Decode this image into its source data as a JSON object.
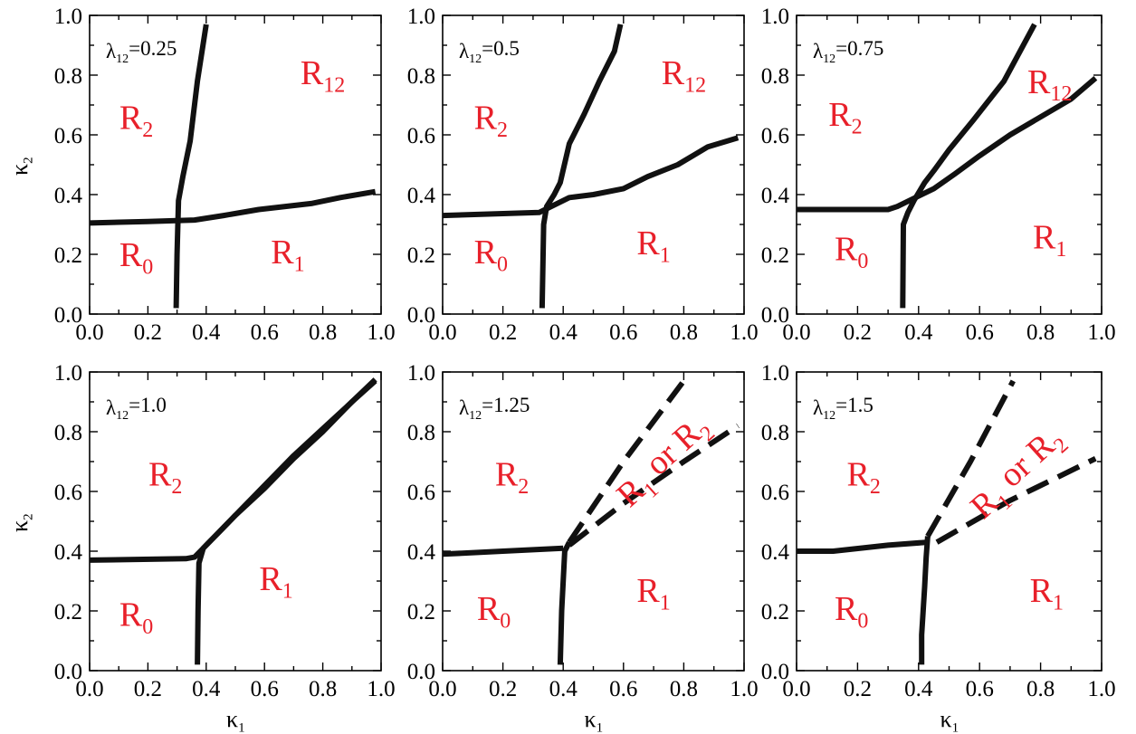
{
  "chart_data": [
    {
      "type": "line",
      "panel_label": {
        "base": "λ",
        "sub": "12",
        "value": "=0.25"
      },
      "xlabel": {
        "base": "κ",
        "sub": "1"
      },
      "ylabel": {
        "base": "κ",
        "sub": "2"
      },
      "xlim": [
        0,
        1
      ],
      "ylim": [
        0,
        1
      ],
      "xticks": [
        "0.0",
        "0.2",
        "0.4",
        "0.6",
        "0.8",
        "1.0"
      ],
      "yticks": [
        "0.0",
        "0.2",
        "0.4",
        "0.6",
        "0.8",
        "1.0"
      ],
      "regions": [
        {
          "base": "R",
          "sub": "2",
          "x": 0.16,
          "y": 0.62
        },
        {
          "base": "R",
          "sub": "12",
          "x": 0.8,
          "y": 0.77
        },
        {
          "base": "R",
          "sub": "0",
          "x": 0.16,
          "y": 0.16
        },
        {
          "base": "R",
          "sub": "1",
          "x": 0.68,
          "y": 0.17
        }
      ],
      "series": [
        {
          "dashed": false,
          "points": [
            [
              0.0,
              0.305
            ],
            [
              0.2,
              0.31
            ],
            [
              0.36,
              0.315
            ],
            [
              0.46,
              0.33
            ],
            [
              0.58,
              0.35
            ],
            [
              0.76,
              0.37
            ],
            [
              0.86,
              0.39
            ],
            [
              0.98,
              0.41
            ]
          ]
        },
        {
          "dashed": false,
          "points": [
            [
              0.297,
              0.02
            ],
            [
              0.3,
              0.2
            ],
            [
              0.305,
              0.38
            ],
            [
              0.32,
              0.46
            ],
            [
              0.345,
              0.58
            ],
            [
              0.37,
              0.78
            ],
            [
              0.4,
              0.97
            ]
          ]
        }
      ]
    },
    {
      "type": "line",
      "panel_label": {
        "base": "λ",
        "sub": "12",
        "value": "=0.5"
      },
      "xlabel": {
        "base": "κ",
        "sub": "1"
      },
      "ylabel": {
        "base": "κ",
        "sub": "2"
      },
      "xlim": [
        0,
        1
      ],
      "ylim": [
        0,
        1
      ],
      "xticks": [
        "0.0",
        "0.2",
        "0.4",
        "0.6",
        "0.8",
        "1.0"
      ],
      "yticks": [
        "0.0",
        "0.2",
        "0.4",
        "0.6",
        "0.8",
        "1.0"
      ],
      "regions": [
        {
          "base": "R",
          "sub": "2",
          "x": 0.16,
          "y": 0.62
        },
        {
          "base": "R",
          "sub": "12",
          "x": 0.8,
          "y": 0.77
        },
        {
          "base": "R",
          "sub": "0",
          "x": 0.16,
          "y": 0.17
        },
        {
          "base": "R",
          "sub": "1",
          "x": 0.7,
          "y": 0.2
        }
      ],
      "series": [
        {
          "dashed": false,
          "points": [
            [
              0.0,
              0.33
            ],
            [
              0.32,
              0.34
            ],
            [
              0.36,
              0.36
            ],
            [
              0.42,
              0.39
            ],
            [
              0.5,
              0.4
            ],
            [
              0.6,
              0.42
            ],
            [
              0.68,
              0.46
            ],
            [
              0.78,
              0.5
            ],
            [
              0.88,
              0.56
            ],
            [
              0.98,
              0.59
            ]
          ]
        },
        {
          "dashed": false,
          "points": [
            [
              0.33,
              0.02
            ],
            [
              0.335,
              0.3
            ],
            [
              0.345,
              0.36
            ],
            [
              0.37,
              0.4
            ],
            [
              0.39,
              0.44
            ],
            [
              0.42,
              0.57
            ],
            [
              0.47,
              0.67
            ],
            [
              0.52,
              0.78
            ],
            [
              0.57,
              0.88
            ],
            [
              0.59,
              0.97
            ]
          ]
        }
      ]
    },
    {
      "type": "line",
      "panel_label": {
        "base": "λ",
        "sub": "12",
        "value": "=0.75"
      },
      "xlabel": {
        "base": "κ",
        "sub": "1"
      },
      "ylabel": {
        "base": "κ",
        "sub": "2"
      },
      "xlim": [
        0,
        1
      ],
      "ylim": [
        0,
        1
      ],
      "xticks": [
        "0.0",
        "0.2",
        "0.4",
        "0.6",
        "0.8",
        "1.0"
      ],
      "yticks": [
        "0.0",
        "0.2",
        "0.4",
        "0.6",
        "0.8",
        "1.0"
      ],
      "regions": [
        {
          "base": "R",
          "sub": "2",
          "x": 0.16,
          "y": 0.63
        },
        {
          "base": "R",
          "sub": "12",
          "x": 0.83,
          "y": 0.74
        },
        {
          "base": "R",
          "sub": "0",
          "x": 0.18,
          "y": 0.18
        },
        {
          "base": "R",
          "sub": "1",
          "x": 0.83,
          "y": 0.22
        }
      ],
      "series": [
        {
          "dashed": false,
          "points": [
            [
              0.0,
              0.35
            ],
            [
              0.3,
              0.35
            ],
            [
              0.33,
              0.36
            ],
            [
              0.37,
              0.38
            ],
            [
              0.45,
              0.42
            ],
            [
              0.52,
              0.47
            ],
            [
              0.6,
              0.53
            ],
            [
              0.7,
              0.6
            ],
            [
              0.8,
              0.66
            ],
            [
              0.9,
              0.72
            ],
            [
              0.98,
              0.79
            ]
          ]
        },
        {
          "dashed": false,
          "points": [
            [
              0.348,
              0.02
            ],
            [
              0.35,
              0.3
            ],
            [
              0.365,
              0.34
            ],
            [
              0.385,
              0.38
            ],
            [
              0.42,
              0.44
            ],
            [
              0.45,
              0.48
            ],
            [
              0.5,
              0.55
            ],
            [
              0.58,
              0.65
            ],
            [
              0.68,
              0.78
            ],
            [
              0.78,
              0.97
            ]
          ]
        }
      ]
    },
    {
      "type": "line",
      "panel_label": {
        "base": "λ",
        "sub": "12",
        "value": "=1.0"
      },
      "xlabel": {
        "base": "κ",
        "sub": "1"
      },
      "ylabel": {
        "base": "κ",
        "sub": "2"
      },
      "xlim": [
        0,
        1
      ],
      "ylim": [
        0,
        1
      ],
      "xticks": [
        "0.0",
        "0.2",
        "0.4",
        "0.6",
        "0.8",
        "1.0"
      ],
      "yticks": [
        "0.0",
        "0.2",
        "0.4",
        "0.6",
        "0.8",
        "1.0"
      ],
      "regions": [
        {
          "base": "R",
          "sub": "2",
          "x": 0.26,
          "y": 0.62
        },
        {
          "base": "R",
          "sub": "0",
          "x": 0.16,
          "y": 0.15
        },
        {
          "base": "R",
          "sub": "1",
          "x": 0.64,
          "y": 0.27
        }
      ],
      "series": [
        {
          "dashed": false,
          "points": [
            [
              0.0,
              0.37
            ],
            [
              0.33,
              0.375
            ],
            [
              0.36,
              0.38
            ],
            [
              0.39,
              0.41
            ],
            [
              0.5,
              0.52
            ],
            [
              0.6,
              0.61
            ],
            [
              0.7,
              0.71
            ],
            [
              0.8,
              0.8
            ],
            [
              0.9,
              0.9
            ],
            [
              0.98,
              0.97
            ]
          ]
        },
        {
          "dashed": false,
          "points": [
            [
              0.37,
              0.02
            ],
            [
              0.372,
              0.2
            ],
            [
              0.375,
              0.36
            ],
            [
              0.39,
              0.41
            ],
            [
              0.5,
              0.52
            ],
            [
              0.6,
              0.62
            ],
            [
              0.7,
              0.72
            ],
            [
              0.8,
              0.81
            ],
            [
              0.9,
              0.9
            ],
            [
              0.98,
              0.975
            ]
          ]
        }
      ]
    },
    {
      "type": "line",
      "panel_label": {
        "base": "λ",
        "sub": "12",
        "value": "=1.25"
      },
      "xlabel": {
        "base": "κ",
        "sub": "1"
      },
      "ylabel": {
        "base": "κ",
        "sub": "2"
      },
      "xlim": [
        0,
        1
      ],
      "ylim": [
        0,
        1
      ],
      "xticks": [
        "0.0",
        "0.2",
        "0.4",
        "0.6",
        "0.8",
        "1.0"
      ],
      "yticks": [
        "0.0",
        "0.2",
        "0.4",
        "0.6",
        "0.8",
        "1.0"
      ],
      "regions": [
        {
          "base": "R",
          "sub": "2",
          "x": 0.23,
          "y": 0.62
        },
        {
          "base": "R",
          "sub": "0",
          "x": 0.17,
          "y": 0.17
        },
        {
          "base": "R",
          "sub": "1",
          "x": 0.7,
          "y": 0.23
        }
      ],
      "rotated_labels": [
        {
          "parts": [
            {
              "base": "R",
              "sub": "1"
            },
            {
              "base": " or R",
              "sub": "2"
            }
          ],
          "x": 0.76,
          "y": 0.67,
          "angle": -42
        }
      ],
      "series": [
        {
          "dashed": false,
          "points": [
            [
              0.0,
              0.39
            ],
            [
              0.2,
              0.4
            ],
            [
              0.4,
              0.41
            ]
          ]
        },
        {
          "dashed": false,
          "points": [
            [
              0.39,
              0.02
            ],
            [
              0.395,
              0.2
            ],
            [
              0.405,
              0.4
            ],
            [
              0.42,
              0.43
            ]
          ]
        },
        {
          "dashed": true,
          "points": [
            [
              0.42,
              0.43
            ],
            [
              0.6,
              0.7
            ],
            [
              0.8,
              0.97
            ]
          ]
        },
        {
          "dashed": true,
          "points": [
            [
              0.42,
              0.42
            ],
            [
              0.6,
              0.56
            ],
            [
              0.8,
              0.7
            ],
            [
              0.98,
              0.82
            ]
          ]
        }
      ]
    },
    {
      "type": "line",
      "panel_label": {
        "base": "λ",
        "sub": "12",
        "value": "=1.5"
      },
      "xlabel": {
        "base": "κ",
        "sub": "1"
      },
      "ylabel": {
        "base": "κ",
        "sub": "2"
      },
      "xlim": [
        0,
        1
      ],
      "ylim": [
        0,
        1
      ],
      "xticks": [
        "0.0",
        "0.2",
        "0.4",
        "0.6",
        "0.8",
        "1.0"
      ],
      "yticks": [
        "0.0",
        "0.2",
        "0.4",
        "0.6",
        "0.8",
        "1.0"
      ],
      "regions": [
        {
          "base": "R",
          "sub": "2",
          "x": 0.22,
          "y": 0.62
        },
        {
          "base": "R",
          "sub": "0",
          "x": 0.18,
          "y": 0.17
        },
        {
          "base": "R",
          "sub": "1",
          "x": 0.82,
          "y": 0.23
        }
      ],
      "rotated_labels": [
        {
          "parts": [
            {
              "base": "R",
              "sub": "1"
            },
            {
              "base": " or R",
              "sub": "2"
            }
          ],
          "x": 0.75,
          "y": 0.63,
          "angle": -42
        }
      ],
      "series": [
        {
          "dashed": false,
          "points": [
            [
              0.0,
              0.4
            ],
            [
              0.12,
              0.4
            ],
            [
              0.3,
              0.42
            ],
            [
              0.43,
              0.43
            ]
          ]
        },
        {
          "dashed": false,
          "points": [
            [
              0.41,
              0.02
            ],
            [
              0.41,
              0.12
            ],
            [
              0.42,
              0.28
            ],
            [
              0.425,
              0.38
            ],
            [
              0.43,
              0.45
            ]
          ]
        },
        {
          "dashed": true,
          "points": [
            [
              0.43,
              0.45
            ],
            [
              0.57,
              0.7
            ],
            [
              0.71,
              0.97
            ]
          ]
        },
        {
          "dashed": true,
          "points": [
            [
              0.46,
              0.43
            ],
            [
              0.7,
              0.57
            ],
            [
              0.98,
              0.71
            ]
          ]
        }
      ]
    }
  ]
}
